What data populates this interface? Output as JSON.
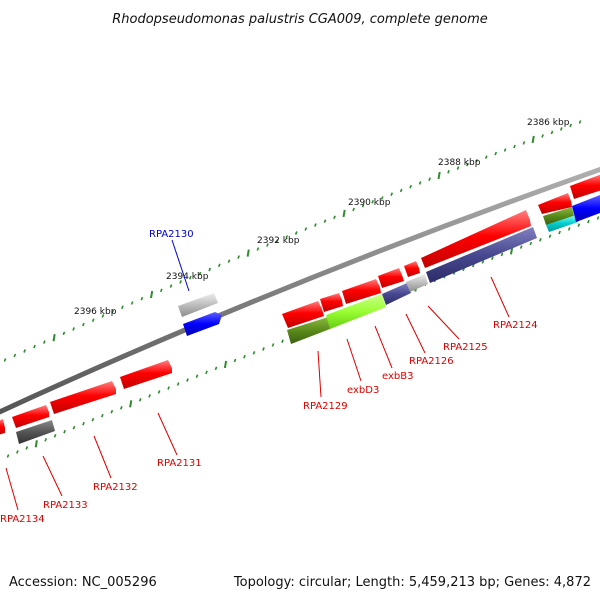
{
  "title": "Rhodopseudomonas palustris CGA009, complete genome",
  "footer": {
    "accession": "Accession: NC_005296",
    "summary": "Topology: circular; Length: 5,459,213 bp; Genes: 4,872"
  },
  "scale_labels": [
    "2386 kbp",
    "2388 kbp",
    "2390 kbp",
    "2392 kbp",
    "2394 kbp",
    "2396 kbp"
  ],
  "colors": {
    "backbone": "#808080",
    "tick": "#2e8b2e",
    "gene_red": "#ff0000",
    "gene_blue": "#0000ff",
    "gene_gray": "#b0b0b0",
    "gene_darkgray": "#555555",
    "gene_navy": "#484890",
    "gene_olive": "#5a8a1a",
    "gene_lime": "#99ff33",
    "gene_cyan": "#00cccc",
    "label_red": "#dd0000",
    "label_blue": "#0000cc"
  },
  "gene_labels": [
    {
      "text": "RPA2130",
      "color": "blue"
    },
    {
      "text": "RPA2124",
      "color": "red"
    },
    {
      "text": "RPA2125",
      "color": "red"
    },
    {
      "text": "RPA2126",
      "color": "red"
    },
    {
      "text": "exbB3",
      "color": "red"
    },
    {
      "text": "exbD3",
      "color": "red"
    },
    {
      "text": "RPA2129",
      "color": "red"
    },
    {
      "text": "RPA2131",
      "color": "red"
    },
    {
      "text": "RPA2132",
      "color": "red"
    },
    {
      "text": "RPA2133",
      "color": "red"
    },
    {
      "text": "RPA2134",
      "color": "red"
    }
  ]
}
